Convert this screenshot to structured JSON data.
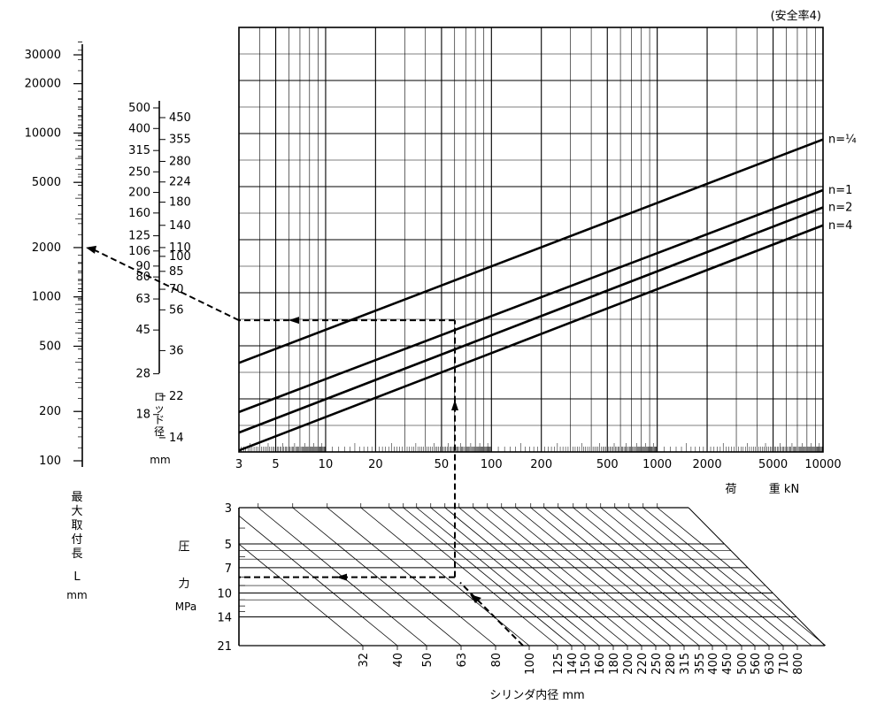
{
  "chart_data": {
    "type": "line",
    "note": "(安全率4)",
    "load_chart": {
      "xlabel_left": "荷",
      "xlabel_right": "重 kN",
      "x_scale": "log",
      "xlim": [
        3,
        10000
      ],
      "x_tick_labels": [
        "3",
        "5",
        "10",
        "20",
        "50",
        "100",
        "200",
        "500",
        "1000",
        "2000",
        "5000",
        "10000"
      ],
      "series": [
        {
          "name": "n=¼",
          "x": [
            3,
            10000
          ],
          "rod_dia": [
            31.5,
            355
          ]
        },
        {
          "name": "n=1",
          "x": [
            3,
            10000
          ],
          "rod_dia": [
            18.5,
            205
          ]
        },
        {
          "name": "n=2",
          "x": [
            3,
            10000
          ],
          "rod_dia": [
            14.8,
            170
          ]
        },
        {
          "name": "n=4",
          "x": [
            3,
            10000
          ],
          "rod_dia": [
            12.2,
            140
          ]
        }
      ]
    },
    "rod_scale": {
      "label_chars": [
        "ロ",
        "ッ",
        "ド",
        "径"
      ],
      "unit": "mm",
      "ticks_left": [
        "500",
        "400",
        "315",
        "250",
        "200",
        "160",
        "125",
        "106",
        "90",
        "80",
        "63",
        "45",
        "28",
        "18"
      ],
      "ticks_right": [
        "450",
        "355",
        "280",
        "224",
        "180",
        "140",
        "110",
        "100",
        "85",
        "70",
        "56",
        "36",
        "22",
        "14"
      ]
    },
    "length_scale": {
      "label_chars": [
        "最",
        "大",
        "取",
        "付",
        "長"
      ],
      "symbol": "L",
      "unit": "mm",
      "ticks": [
        "30000",
        "20000",
        "10000",
        "5000",
        "2000",
        "1000",
        "500",
        "200",
        "100"
      ]
    },
    "pressure_chart": {
      "ylabel_chars": [
        "圧",
        "力"
      ],
      "yunit": "MPa",
      "y_ticks": [
        "3",
        "5",
        "7",
        "10",
        "14",
        "21"
      ],
      "x_title": "シリンダ内径 mm",
      "x_ticks": [
        "32",
        "40",
        "50",
        "63",
        "80",
        "100",
        "125",
        "140",
        "150",
        "160",
        "180",
        "200",
        "220",
        "250",
        "280",
        "315",
        "355",
        "400",
        "450",
        "500",
        "560",
        "630",
        "710",
        "800"
      ]
    },
    "example": {
      "cylinder_bore": 100,
      "pressure": 8,
      "rod_dia": 50,
      "max_length": 2000
    }
  }
}
